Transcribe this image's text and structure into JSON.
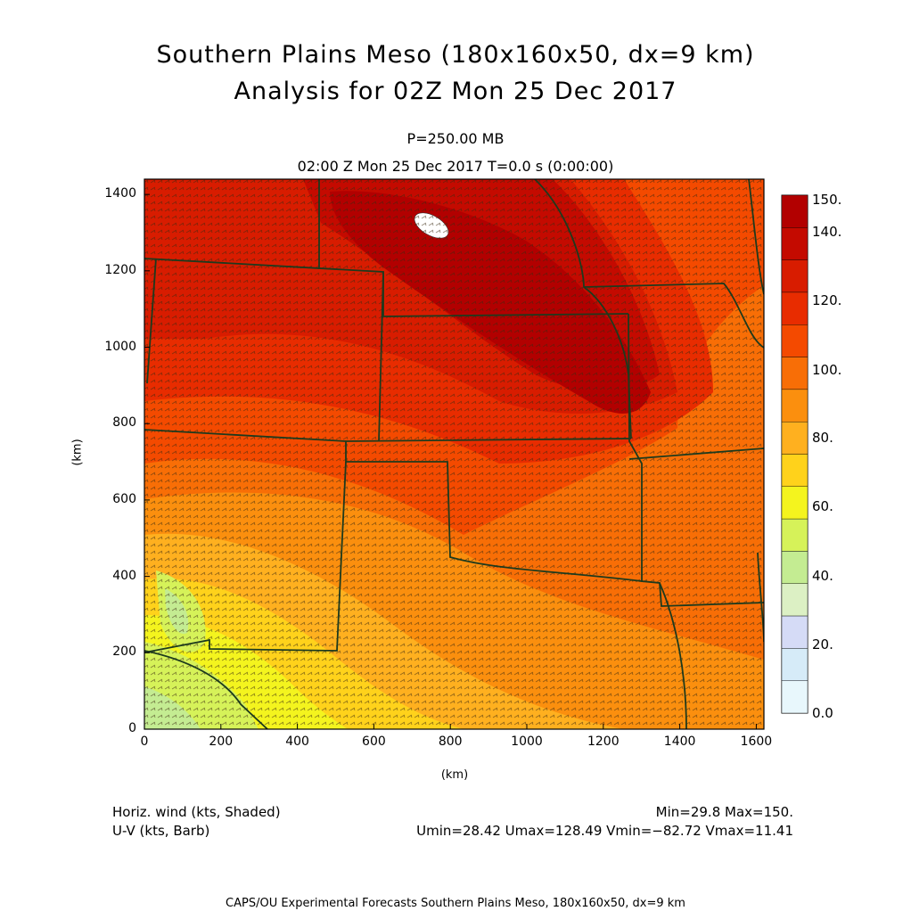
{
  "title": {
    "line1": "Southern Plains Meso (180x160x50, dx=9 km)",
    "line2": "Analysis for 02Z Mon 25 Dec 2017"
  },
  "subtitle": {
    "level": "P=250.00 MB",
    "time": "02:00 Z Mon 25 Dec 2017    T=0.0 s (0:00:00)"
  },
  "axes": {
    "xlabel": "(km)",
    "ylabel": "(km)",
    "x_ticks": [
      "0",
      "200",
      "400",
      "600",
      "800",
      "1000",
      "1200",
      "1400",
      "1600"
    ],
    "y_ticks": [
      "0",
      "200",
      "400",
      "600",
      "800",
      "1000",
      "1200",
      "1400"
    ],
    "xlim": [
      0,
      1620
    ],
    "ylim": [
      0,
      1440
    ]
  },
  "colorbar": {
    "labels": [
      "150.",
      "140.",
      "120.",
      "100.",
      "80.",
      "60.",
      "40.",
      "20.",
      "0.0"
    ],
    "colors": [
      "#b20000",
      "#c40a00",
      "#d81c00",
      "#e82c00",
      "#f44a00",
      "#f86e06",
      "#fb8f0e",
      "#ffb01f",
      "#ffd21b",
      "#f4f41e",
      "#d6f259",
      "#c4ec92",
      "#dcf0c4",
      "#d5dbf6",
      "#d6ebf8",
      "#e8f7fc"
    ]
  },
  "field": {
    "name": "Horiz. wind (kts, Shaded)",
    "vector_name": "U-V (kts, Barb)",
    "minmax": "Min=29.8 Max=150.",
    "uv_stats": "Umin=28.42 Umax=128.49 Vmin=−82.72 Vmax=11.41"
  },
  "footer": "CAPS/OU Experimental Forecasts  Southern Plains Meso, 180x160x50, dx=9 km"
}
